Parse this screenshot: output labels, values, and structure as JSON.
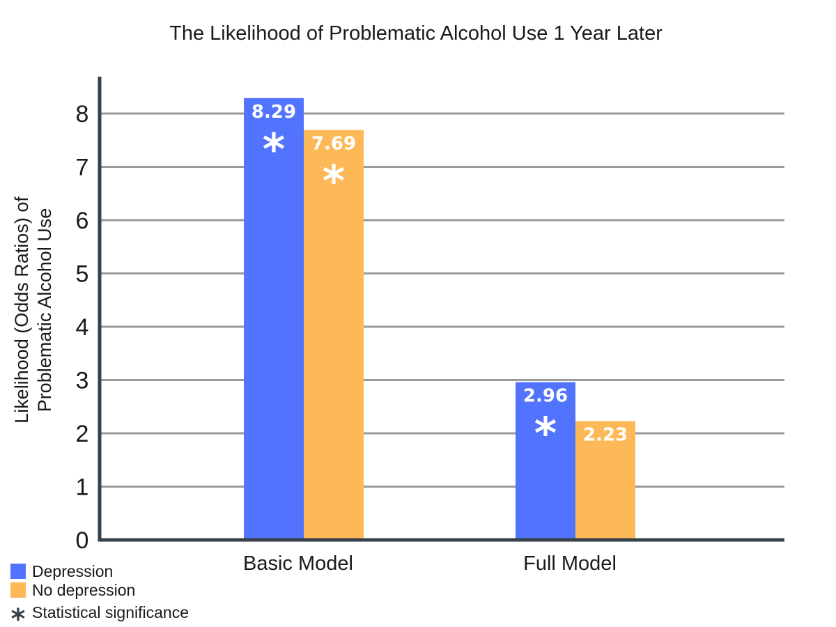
{
  "chart_data": {
    "type": "bar",
    "title": "The Likelihood of Problematic Alcohol Use 1 Year Later",
    "ylabel_lines": [
      "Likelihood (Odds Ratios) of",
      "Problematic Alcohol Use"
    ],
    "xlabel": "",
    "categories": [
      "Basic Model",
      "Full Model"
    ],
    "ylim": [
      0,
      8.8
    ],
    "yticks": [
      0,
      1,
      2,
      3,
      4,
      5,
      6,
      7,
      8
    ],
    "grid": true,
    "series": [
      {
        "name": "Depression",
        "color": "#5273fd",
        "values": [
          8.29,
          2.96
        ],
        "labels": [
          "8.29",
          "2.96"
        ],
        "significant": [
          true,
          true
        ]
      },
      {
        "name": "No depression",
        "color": "#fdb957",
        "values": [
          7.69,
          2.23
        ],
        "labels": [
          "7.69",
          "2.23"
        ],
        "significant": [
          true,
          false
        ]
      }
    ],
    "significance_marker": "*",
    "legend": {
      "placement": "bottom-left",
      "items": [
        {
          "label": "Depression",
          "color": "#5273fd",
          "marker": "square"
        },
        {
          "label": "No depression",
          "color": "#fdb957",
          "marker": "square"
        },
        {
          "label": "Statistical significance",
          "color": "#37414a",
          "marker": "asterisk",
          "symbol": "*"
        }
      ]
    },
    "colors": {
      "axis": "#37414a",
      "grid": "#9a9a9a"
    }
  }
}
